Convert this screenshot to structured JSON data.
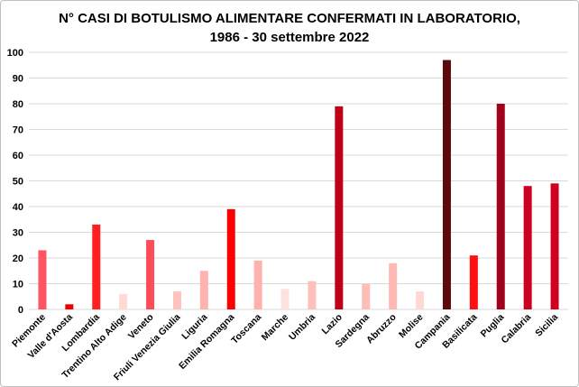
{
  "chart_data": {
    "type": "bar",
    "title": "N° CASI DI BOTULISMO ALIMENTARE CONFERMATI IN LABORATORIO,",
    "subtitle": "1986 - 30 settembre 2022",
    "xlabel": "",
    "ylabel": "",
    "ylim": [
      0,
      100
    ],
    "yticks": [
      0,
      10,
      20,
      30,
      40,
      50,
      60,
      70,
      80,
      90,
      100
    ],
    "grid": true,
    "categories": [
      "Piemonte",
      "Valle d'Aosta",
      "Lombardia",
      "Trentino Alto Adige",
      "Veneto",
      "Friuli Venezia Giulia",
      "Liguria",
      "Emilia Romagna",
      "Toscana",
      "Marche",
      "Umbria",
      "Lazio",
      "Sardegna",
      "Abruzzo",
      "Molise",
      "Campania",
      "Basilicata",
      "Puglia",
      "Calabria",
      "Sicilia"
    ],
    "values": [
      23,
      2,
      33,
      6,
      27,
      7,
      15,
      39,
      19,
      8,
      11,
      79,
      10,
      18,
      7,
      97,
      21,
      80,
      48,
      49
    ],
    "colors": [
      "#ff5563",
      "#ee0000",
      "#ff1f1f",
      "#ffd9d4",
      "#ff4c59",
      "#ffc2be",
      "#ffb3b0",
      "#ff0000",
      "#ffb2ad",
      "#ffe1dd",
      "#ffbfba",
      "#c00016",
      "#ffbdb8",
      "#ffb9b5",
      "#ffd8d4",
      "#5c0b0b",
      "#ff1010",
      "#a0001a",
      "#cc0020",
      "#d0001f"
    ]
  }
}
